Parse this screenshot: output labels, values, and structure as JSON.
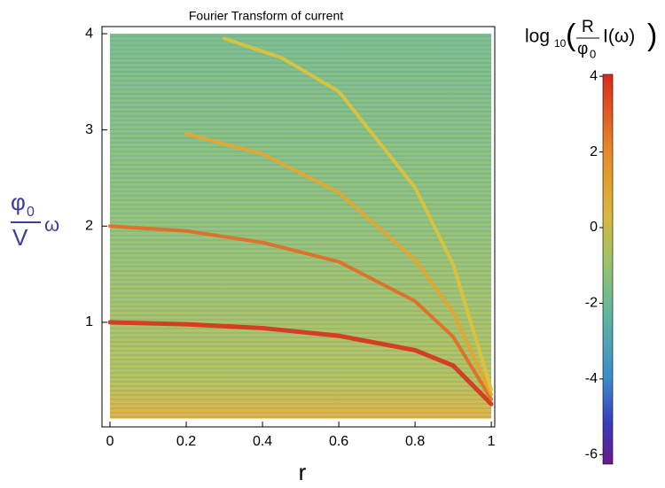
{
  "chart_data": {
    "type": "heatmap",
    "title": "Fourier Transform of current",
    "xlabel": "r",
    "ylabel": {
      "numerator": "φ",
      "numerator_sub": "0",
      "denominator": "V",
      "symbol": "ω"
    },
    "xlim": [
      -0.021,
      1.009
    ],
    "ylim": [
      -0.087,
      4.074
    ],
    "xticks": [
      0,
      0.2,
      0.4,
      0.6,
      0.8,
      1
    ],
    "yticks": [
      1,
      2,
      3,
      4
    ],
    "ridges": [
      {
        "color": "#d8301c",
        "x": [
          0,
          0.2,
          0.4,
          0.6,
          0.8,
          0.9,
          1
        ],
        "y": [
          1.0,
          0.98,
          0.94,
          0.86,
          0.71,
          0.55,
          0.15
        ]
      },
      {
        "color": "#e66a22",
        "x": [
          0,
          0.2,
          0.4,
          0.6,
          0.8,
          0.9,
          1
        ],
        "y": [
          2.0,
          1.95,
          1.83,
          1.63,
          1.22,
          0.85,
          0.2
        ]
      },
      {
        "color": "#e9a52c",
        "x": [
          0.2,
          0.4,
          0.6,
          0.8,
          0.9,
          1
        ],
        "y": [
          2.96,
          2.75,
          2.35,
          1.65,
          1.1,
          0.25
        ]
      },
      {
        "color": "#e0c23a",
        "x": [
          0.3,
          0.45,
          0.6,
          0.8,
          0.9,
          1
        ],
        "y": [
          3.95,
          3.75,
          3.4,
          2.4,
          1.6,
          0.3
        ]
      }
    ],
    "colorbar": {
      "label": {
        "prefix": "log",
        "prefix_sub": "10",
        "numerator": "R",
        "denominator": "φ",
        "denominator_sub": "0",
        "suffix": "I(ω)"
      },
      "zlim": [
        -6.25,
        4.05
      ],
      "zticks": [
        4,
        2,
        0,
        -2,
        -4,
        -6
      ]
    }
  }
}
